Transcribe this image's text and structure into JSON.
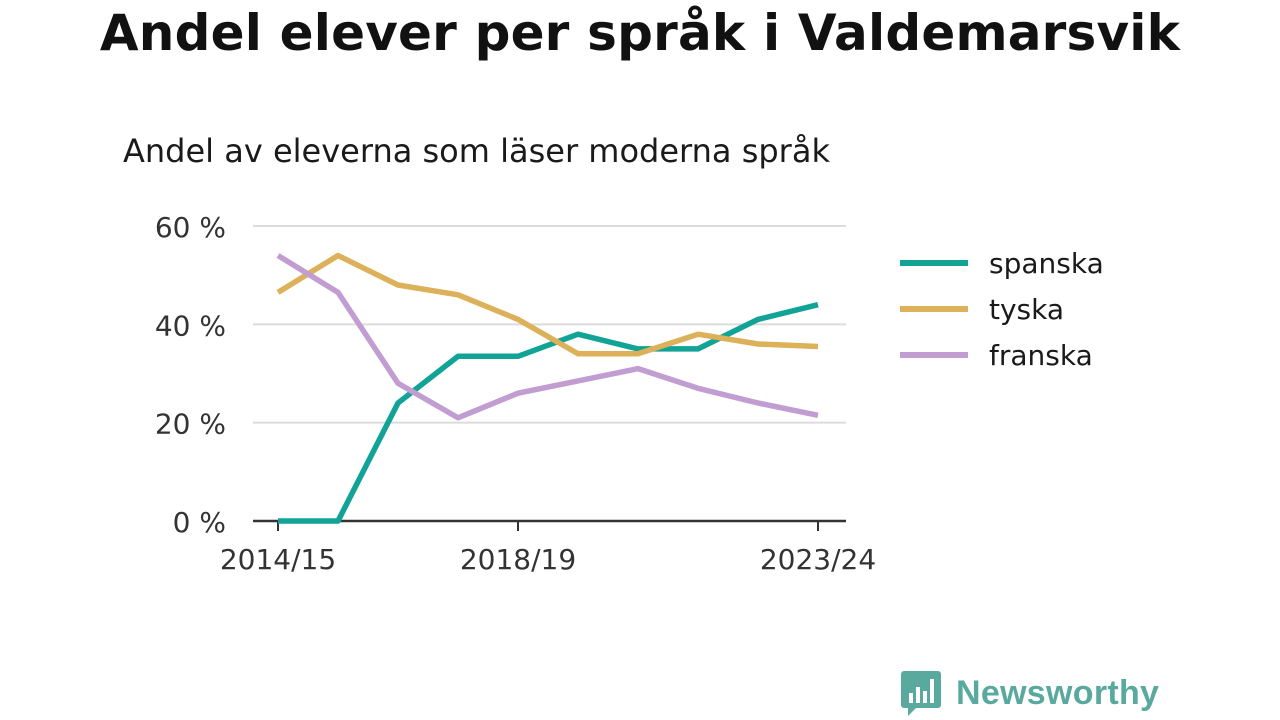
{
  "header": {
    "title": "Andel elever per språk i Valdemarsvik",
    "subtitle": "Andel av eleverna som läser moderna språk"
  },
  "brand": {
    "name": "Newsworthy",
    "color": "#5aa99e",
    "icon": "newsworthy-logo-icon"
  },
  "chart_data": {
    "type": "line",
    "title": "Andel elever per språk i Valdemarsvik",
    "subtitle": "Andel av eleverna som läser moderna språk",
    "x": [
      "2014/15",
      "2015/16",
      "2016/17",
      "2017/18",
      "2018/19",
      "2019/20",
      "2020/21",
      "2021/22",
      "2022/23",
      "2023/24"
    ],
    "x_tick_labels": [
      "2014/15",
      "2018/19",
      "2023/24"
    ],
    "x_tick_indices": [
      0,
      4,
      9
    ],
    "ylim": [
      0,
      60
    ],
    "y_ticks": [
      0,
      20,
      40,
      60
    ],
    "y_tick_labels": [
      "0 %",
      "20 %",
      "40 %",
      "60 %"
    ],
    "grid": true,
    "legend_position": "right",
    "series": [
      {
        "name": "spanska",
        "color": "#11a396",
        "values": [
          0,
          0,
          24,
          33.5,
          33.5,
          38,
          35,
          35,
          41,
          44
        ]
      },
      {
        "name": "tyska",
        "color": "#dcb15a",
        "values": [
          46.5,
          54,
          48,
          46,
          41,
          34,
          34,
          38,
          36,
          35.5
        ]
      },
      {
        "name": "franska",
        "color": "#c19dd1",
        "values": [
          54,
          46.5,
          28,
          21,
          26,
          28.5,
          31,
          27,
          24,
          21.5
        ]
      }
    ]
  }
}
